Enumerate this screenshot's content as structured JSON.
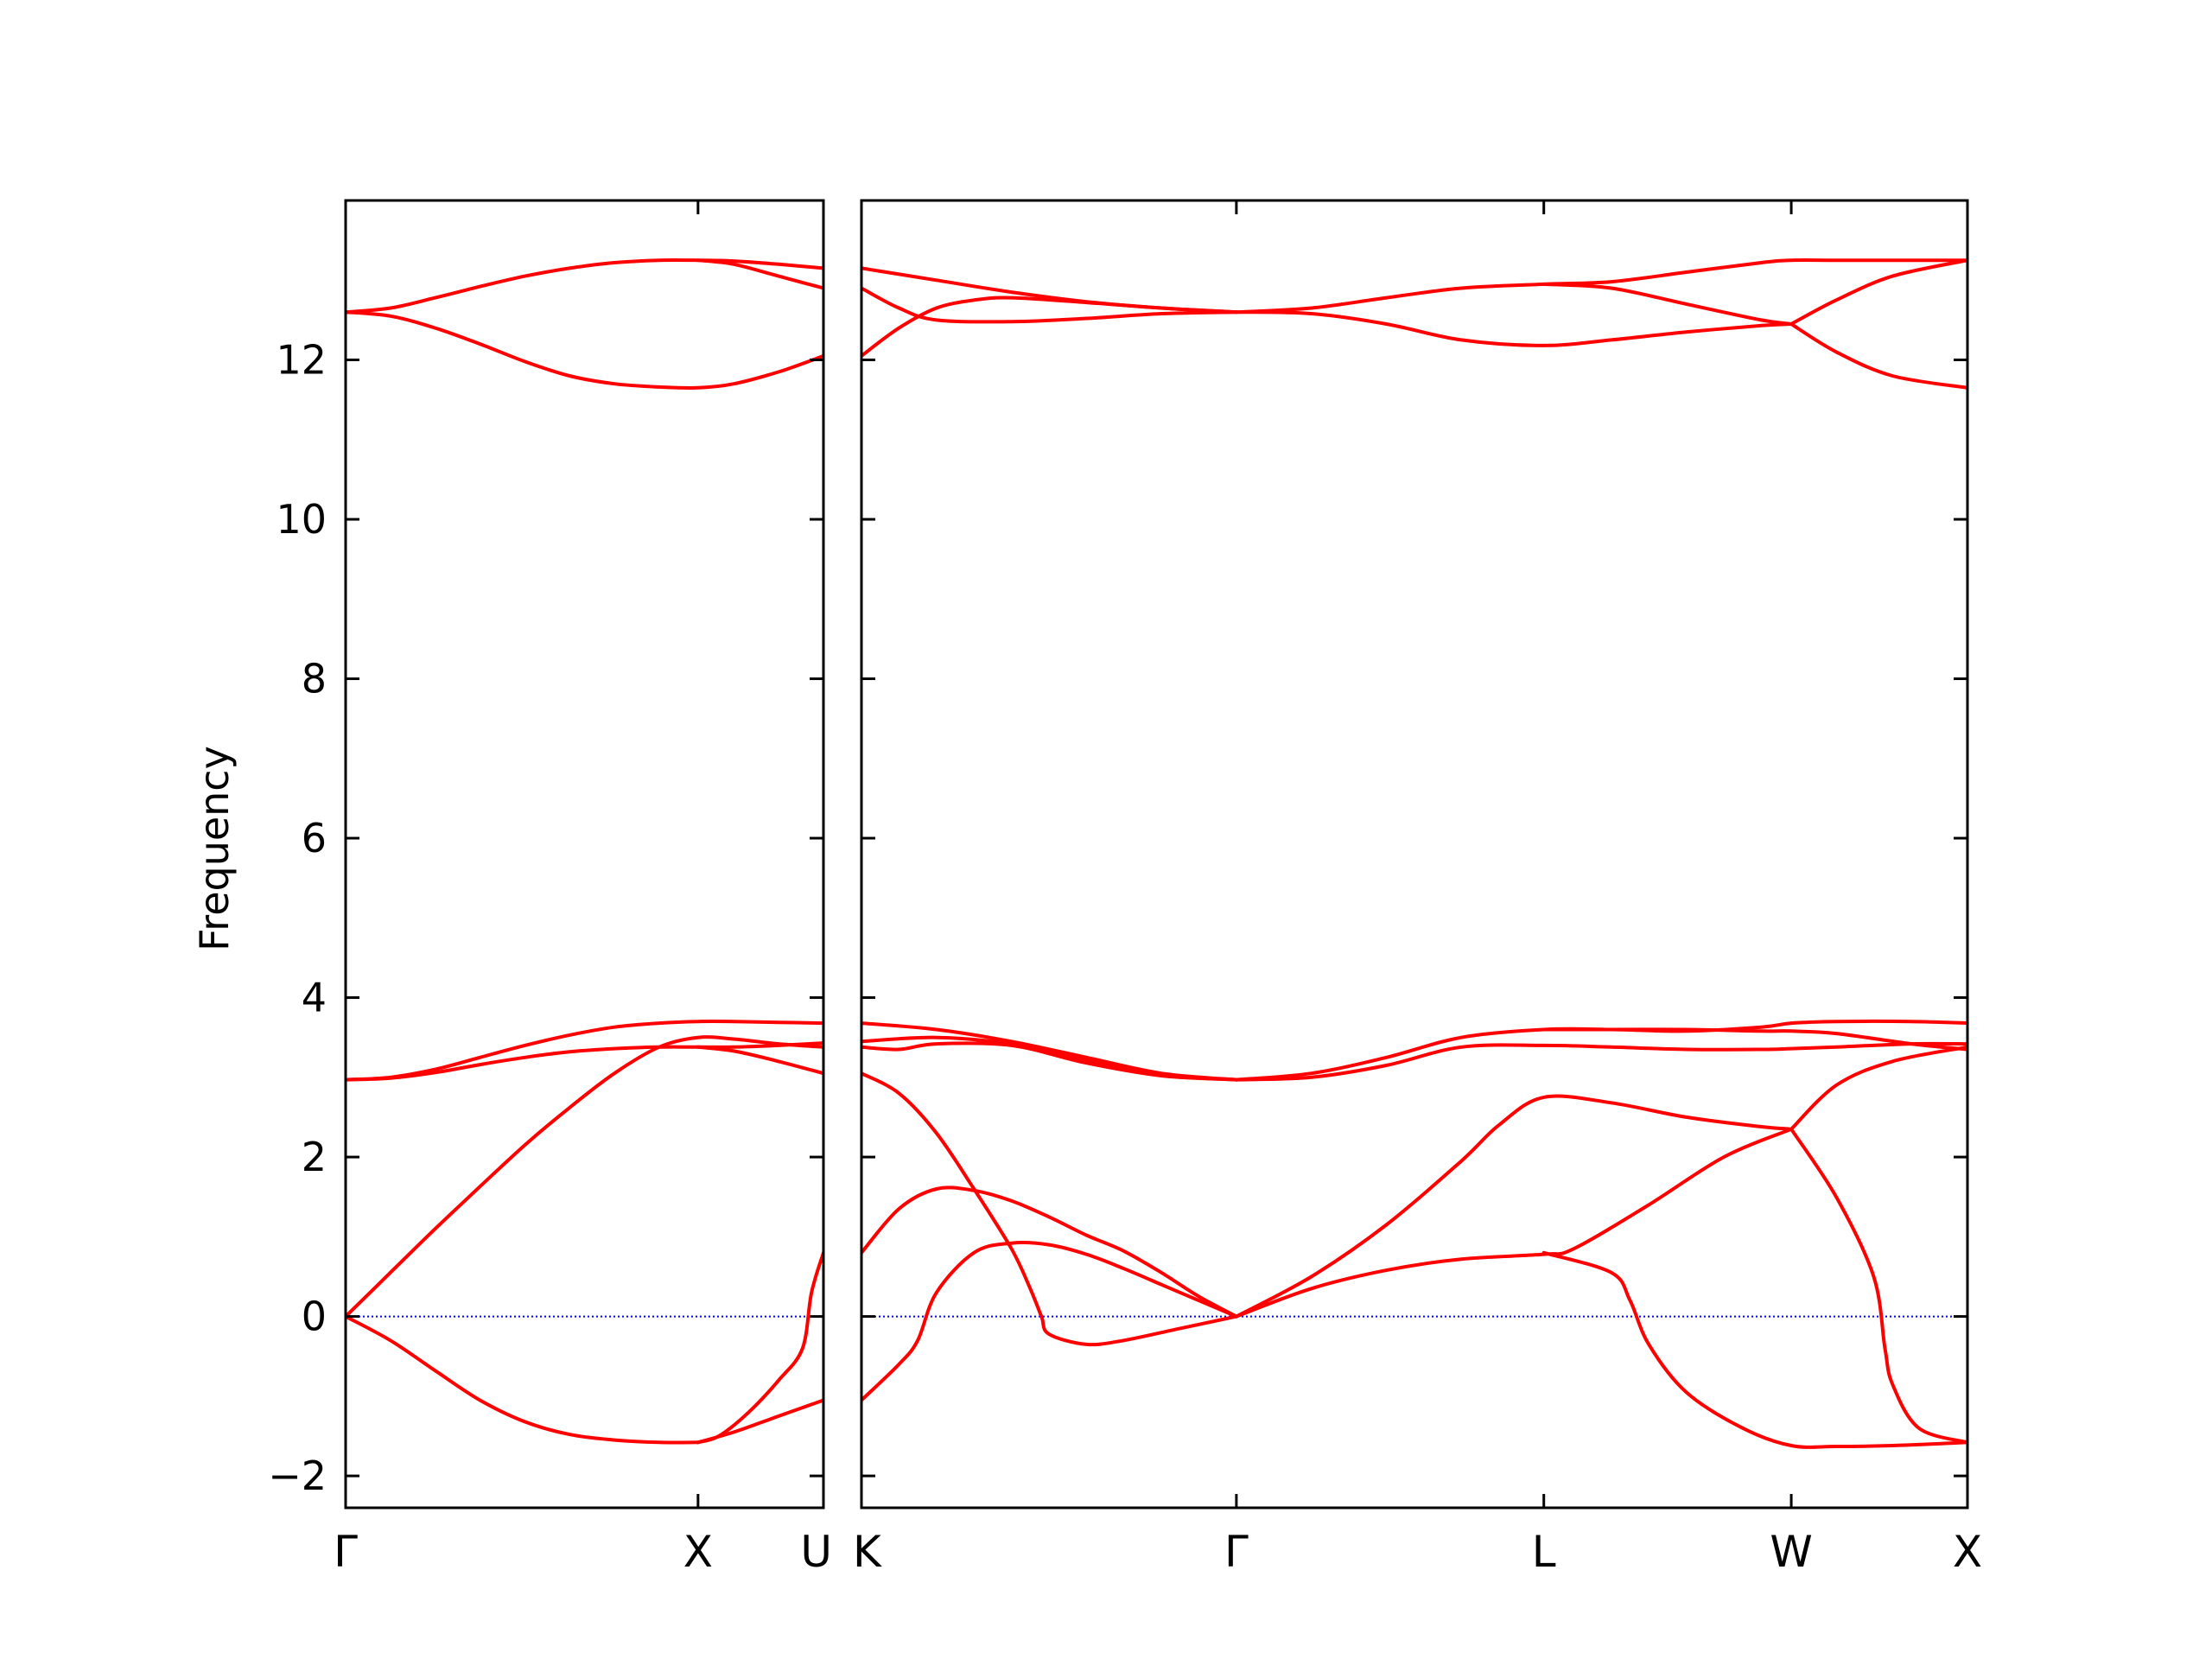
{
  "chart_data": {
    "type": "line",
    "ylabel": "Frequency",
    "ylim": [
      -2.4,
      14
    ],
    "yticks": [
      -2,
      0,
      2,
      4,
      6,
      8,
      10,
      12
    ],
    "ytick_labels": [
      "−2",
      "0",
      "2",
      "4",
      "6",
      "8",
      "10",
      "12"
    ],
    "line_color": "#ff0000",
    "zero_line_color": "#0000ff",
    "panels": [
      {
        "xlim": [
          0,
          1.6
        ],
        "ticks": [
          {
            "x": 0,
            "label": "Γ"
          },
          {
            "x": 1.18,
            "label": "X"
          },
          {
            "x": 1.6,
            "label": "U"
          }
        ],
        "series": [
          {
            "x": [
              0,
              0.15,
              0.3,
              0.45,
              0.6,
              0.75,
              0.9,
              1.05,
              1.18,
              1.3,
              1.45,
              1.6
            ],
            "y": [
              12.6,
              12.65,
              12.78,
              12.92,
              13.05,
              13.15,
              13.22,
              13.25,
              13.25,
              13.24,
              13.2,
              13.15
            ]
          },
          {
            "x": [
              0,
              0.15,
              0.3,
              0.45,
              0.6,
              0.75,
              0.9,
              1.05,
              1.18,
              1.3,
              1.45,
              1.6
            ],
            "y": [
              12.6,
              12.55,
              12.4,
              12.2,
              11.98,
              11.8,
              11.7,
              11.66,
              11.65,
              11.7,
              11.85,
              12.05
            ]
          },
          {
            "x": [
              1.18,
              1.3,
              1.45,
              1.6
            ],
            "y": [
              13.25,
              13.2,
              13.05,
              12.9
            ]
          },
          {
            "x": [
              0,
              0.15,
              0.3,
              0.45,
              0.6,
              0.75,
              0.9,
              1.05,
              1.18,
              1.3,
              1.45,
              1.6
            ],
            "y": [
              2.97,
              3.0,
              3.1,
              3.25,
              3.4,
              3.53,
              3.63,
              3.68,
              3.7,
              3.7,
              3.69,
              3.68
            ]
          },
          {
            "x": [
              0,
              0.15,
              0.3,
              0.45,
              0.6,
              0.75,
              0.9,
              1.05,
              1.18,
              1.3,
              1.45,
              1.6
            ],
            "y": [
              2.97,
              2.99,
              3.06,
              3.16,
              3.25,
              3.32,
              3.36,
              3.38,
              3.38,
              3.38,
              3.4,
              3.43
            ]
          },
          {
            "x": [
              0,
              0.15,
              0.3,
              0.45,
              0.6,
              0.75,
              0.9,
              1.05,
              1.18,
              1.3,
              1.45,
              1.6
            ],
            "y": [
              0,
              0.55,
              1.1,
              1.63,
              2.15,
              2.62,
              3.05,
              3.38,
              3.5,
              3.48,
              3.42,
              3.38
            ]
          },
          {
            "x": [
              1.18,
              1.3,
              1.45,
              1.6
            ],
            "y": [
              3.38,
              3.33,
              3.2,
              3.05
            ]
          },
          {
            "x": [
              0,
              0.15,
              0.3,
              0.45,
              0.6,
              0.75,
              0.9,
              1.05,
              1.18
            ],
            "y": [
              0,
              -0.3,
              -0.68,
              -1.05,
              -1.32,
              -1.48,
              -1.55,
              -1.58,
              -1.58
            ]
          },
          {
            "x": [
              1.18,
              1.25,
              1.35,
              1.45,
              1.53,
              1.56,
              1.6
            ],
            "y": [
              -1.58,
              -1.5,
              -1.2,
              -0.8,
              -0.4,
              0.3,
              0.8
            ]
          },
          {
            "x": [
              1.18,
              1.3,
              1.45,
              1.6
            ],
            "y": [
              -1.58,
              -1.45,
              -1.25,
              -1.05
            ]
          }
        ]
      },
      {
        "xlim": [
          1.6,
          4.55
        ],
        "ticks": [
          {
            "x": 1.6,
            "label": "K"
          },
          {
            "x": 2.6,
            "label": "Γ"
          },
          {
            "x": 3.42,
            "label": "L"
          },
          {
            "x": 4.08,
            "label": "W"
          },
          {
            "x": 4.55,
            "label": "X"
          }
        ],
        "series": [
          {
            "x": [
              1.6,
              1.8,
              2.0,
              2.2,
              2.4,
              2.6
            ],
            "y": [
              13.15,
              13.0,
              12.85,
              12.73,
              12.65,
              12.6
            ]
          },
          {
            "x": [
              1.6,
              1.7,
              1.8,
              2.0,
              2.2,
              2.4,
              2.6
            ],
            "y": [
              12.9,
              12.65,
              12.5,
              12.48,
              12.52,
              12.58,
              12.6
            ]
          },
          {
            "x": [
              1.6,
              1.7,
              1.8,
              1.9,
              2.0,
              2.2,
              2.4,
              2.6
            ],
            "y": [
              12.05,
              12.4,
              12.65,
              12.75,
              12.78,
              12.72,
              12.65,
              12.6
            ]
          },
          {
            "x": [
              2.6,
              2.8,
              3.0,
              3.2,
              3.42,
              3.6,
              3.8,
              4.0,
              4.08,
              4.2,
              4.4,
              4.55
            ],
            "y": [
              12.6,
              12.65,
              12.78,
              12.9,
              12.95,
              12.98,
              13.1,
              13.22,
              13.25,
              13.25,
              13.25,
              13.25
            ]
          },
          {
            "x": [
              2.6,
              2.8,
              3.0,
              3.2,
              3.42,
              3.6,
              3.8,
              4.0,
              4.08
            ],
            "y": [
              12.6,
              12.58,
              12.45,
              12.25,
              12.18,
              12.25,
              12.35,
              12.43,
              12.45
            ]
          },
          {
            "x": [
              3.42,
              3.6,
              3.8,
              4.0,
              4.08
            ],
            "y": [
              12.95,
              12.9,
              12.7,
              12.5,
              12.45
            ]
          },
          {
            "x": [
              4.08,
              4.2,
              4.35,
              4.55
            ],
            "y": [
              12.45,
              12.75,
              13.05,
              13.25
            ]
          },
          {
            "x": [
              4.08,
              4.2,
              4.35,
              4.55
            ],
            "y": [
              12.45,
              12.1,
              11.8,
              11.65
            ]
          },
          {
            "x": [
              1.6,
              1.8,
              2.0,
              2.2,
              2.4,
              2.6
            ],
            "y": [
              3.68,
              3.6,
              3.45,
              3.25,
              3.05,
              2.97
            ]
          },
          {
            "x": [
              1.6,
              1.8,
              2.0,
              2.2,
              2.4,
              2.6
            ],
            "y": [
              3.45,
              3.5,
              3.42,
              3.22,
              3.03,
              2.97
            ]
          },
          {
            "x": [
              1.6,
              1.7,
              1.8,
              2.0,
              2.2,
              2.4,
              2.6
            ],
            "y": [
              3.38,
              3.35,
              3.42,
              3.4,
              3.18,
              3.02,
              2.97
            ]
          },
          {
            "x": [
              2.6,
              2.8,
              3.0,
              3.2,
              3.42,
              3.6,
              3.8,
              4.0,
              4.08,
              4.2,
              4.4,
              4.55
            ],
            "y": [
              2.97,
              3.05,
              3.25,
              3.5,
              3.6,
              3.6,
              3.58,
              3.63,
              3.68,
              3.7,
              3.7,
              3.68
            ]
          },
          {
            "x": [
              2.6,
              2.8,
              3.0,
              3.2,
              3.42,
              3.6,
              3.8,
              4.0,
              4.08,
              4.2,
              4.4,
              4.55
            ],
            "y": [
              2.97,
              3.0,
              3.15,
              3.38,
              3.4,
              3.38,
              3.35,
              3.35,
              3.36,
              3.38,
              3.42,
              3.42
            ]
          },
          {
            "x": [
              3.42,
              3.6,
              3.8,
              4.0,
              4.08,
              4.2,
              4.4,
              4.55
            ],
            "y": [
              3.6,
              3.6,
              3.6,
              3.58,
              3.58,
              3.55,
              3.42,
              3.35
            ]
          },
          {
            "x": [
              1.6,
              1.7,
              1.8,
              1.9,
              2.0,
              2.05,
              2.08,
              2.1,
              2.2,
              2.3,
              2.45,
              2.6
            ],
            "y": [
              3.05,
              2.8,
              2.3,
              1.6,
              0.85,
              0.35,
              0.0,
              -0.22,
              -0.35,
              -0.3,
              -0.15,
              0
            ]
          },
          {
            "x": [
              2.6,
              2.8,
              3.0,
              3.2,
              3.3,
              3.42,
              3.6,
              3.8,
              4.0,
              4.08
            ],
            "y": [
              0,
              0.5,
              1.15,
              1.95,
              2.4,
              2.75,
              2.68,
              2.5,
              2.38,
              2.35
            ]
          },
          {
            "x": [
              2.6,
              2.8,
              3.0,
              3.2,
              3.42,
              3.5,
              3.7,
              3.9,
              4.08
            ],
            "y": [
              0,
              0.35,
              0.58,
              0.72,
              0.78,
              0.85,
              1.4,
              2.0,
              2.35
            ]
          },
          {
            "x": [
              1.6,
              1.7,
              1.8,
              1.9,
              2.0,
              2.1,
              2.2,
              2.3,
              2.4,
              2.5,
              2.6
            ],
            "y": [
              0.8,
              1.35,
              1.6,
              1.58,
              1.45,
              1.25,
              1.02,
              0.82,
              0.55,
              0.25,
              0
            ]
          },
          {
            "x": [
              1.6,
              1.7,
              1.75,
              1.8,
              1.9,
              2.0,
              2.1,
              2.2,
              2.3,
              2.4,
              2.5,
              2.6
            ],
            "y": [
              -1.05,
              -0.6,
              -0.3,
              0.3,
              0.8,
              0.92,
              0.9,
              0.78,
              0.6,
              0.4,
              0.2,
              0
            ]
          },
          {
            "x": [
              3.42,
              3.6,
              3.65,
              3.7,
              3.8,
              3.95,
              4.08,
              4.2,
              4.35,
              4.55
            ],
            "y": [
              0.8,
              0.55,
              0.2,
              -0.35,
              -0.95,
              -1.4,
              -1.62,
              -1.63,
              -1.62,
              -1.58
            ]
          },
          {
            "x": [
              4.08,
              4.2,
              4.3,
              4.33,
              4.35,
              4.42,
              4.55
            ],
            "y": [
              2.35,
              1.5,
              0.5,
              -0.4,
              -0.85,
              -1.4,
              -1.58
            ]
          },
          {
            "x": [
              4.08,
              4.2,
              4.35,
              4.55
            ],
            "y": [
              2.35,
              2.9,
              3.2,
              3.38
            ]
          }
        ]
      }
    ]
  }
}
